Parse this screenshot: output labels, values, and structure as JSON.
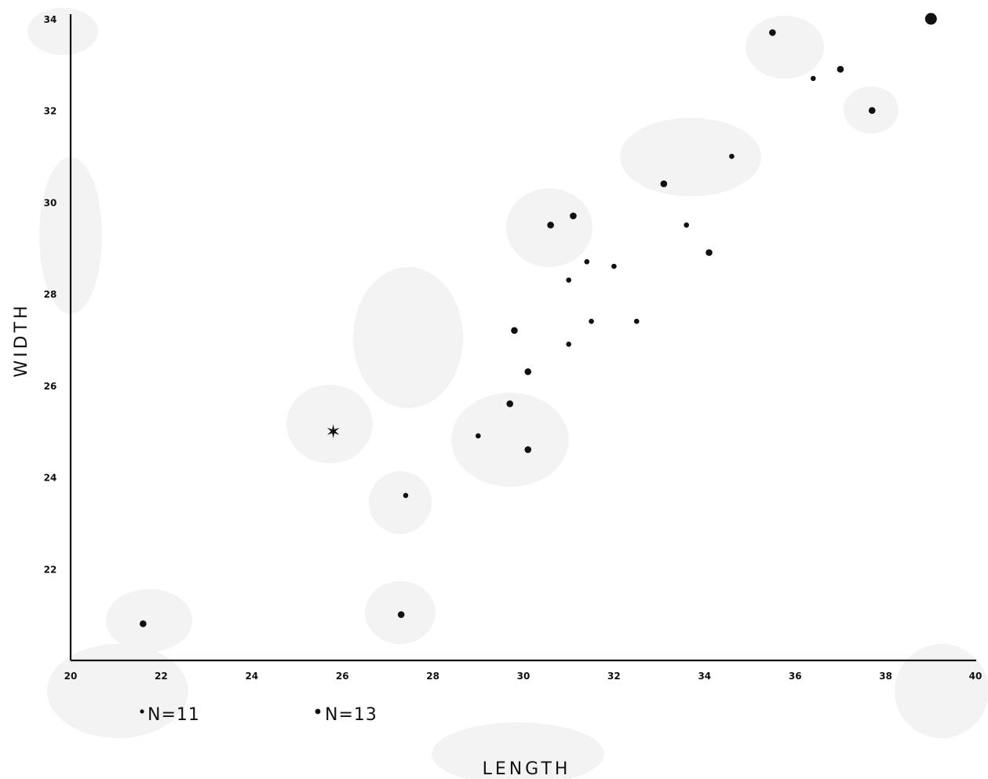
{
  "chart_data": {
    "type": "scatter",
    "xlabel": "LENGTH",
    "ylabel": "WIDTH",
    "xlim": [
      20,
      40
    ],
    "ylim": [
      20,
      34
    ],
    "x_ticks": [
      "20",
      "22",
      "24",
      "26",
      "28",
      "30",
      "32",
      "34",
      "36",
      "38",
      "40"
    ],
    "y_ticks": [
      "22",
      "24",
      "26",
      "28",
      "30",
      "32",
      "34"
    ],
    "grid": false,
    "legend": [
      {
        "label": "N=11",
        "marker": "small-dot"
      },
      {
        "label": "N=13",
        "marker": "medium-dot"
      }
    ],
    "series": [
      {
        "name": "N=11",
        "marker": "small-dot",
        "points": [
          {
            "x": 27.4,
            "y": 23.6
          },
          {
            "x": 29.0,
            "y": 24.9
          },
          {
            "x": 31.0,
            "y": 26.9
          },
          {
            "x": 31.5,
            "y": 27.4
          },
          {
            "x": 32.5,
            "y": 27.4
          },
          {
            "x": 31.0,
            "y": 28.3
          },
          {
            "x": 31.4,
            "y": 28.7
          },
          {
            "x": 32.0,
            "y": 28.6
          },
          {
            "x": 33.6,
            "y": 29.5
          },
          {
            "x": 34.6,
            "y": 31.0
          },
          {
            "x": 36.4,
            "y": 32.7
          }
        ]
      },
      {
        "name": "N=13",
        "marker": "medium-dot",
        "points": [
          {
            "x": 21.6,
            "y": 20.8
          },
          {
            "x": 27.3,
            "y": 21.0
          },
          {
            "x": 30.1,
            "y": 24.6
          },
          {
            "x": 29.7,
            "y": 25.6
          },
          {
            "x": 30.1,
            "y": 26.3
          },
          {
            "x": 29.8,
            "y": 27.2
          },
          {
            "x": 30.6,
            "y": 29.5
          },
          {
            "x": 31.1,
            "y": 29.7
          },
          {
            "x": 34.1,
            "y": 28.9
          },
          {
            "x": 33.1,
            "y": 30.4
          },
          {
            "x": 37.7,
            "y": 32.0
          },
          {
            "x": 37.0,
            "y": 32.9
          },
          {
            "x": 35.5,
            "y": 33.7
          }
        ]
      },
      {
        "name": "",
        "marker": "large-dot",
        "points": [
          {
            "x": 39.0,
            "y": 34.0
          }
        ]
      },
      {
        "name": "",
        "marker": "star",
        "points": [
          {
            "x": 25.8,
            "y": 25.0
          }
        ]
      }
    ]
  }
}
